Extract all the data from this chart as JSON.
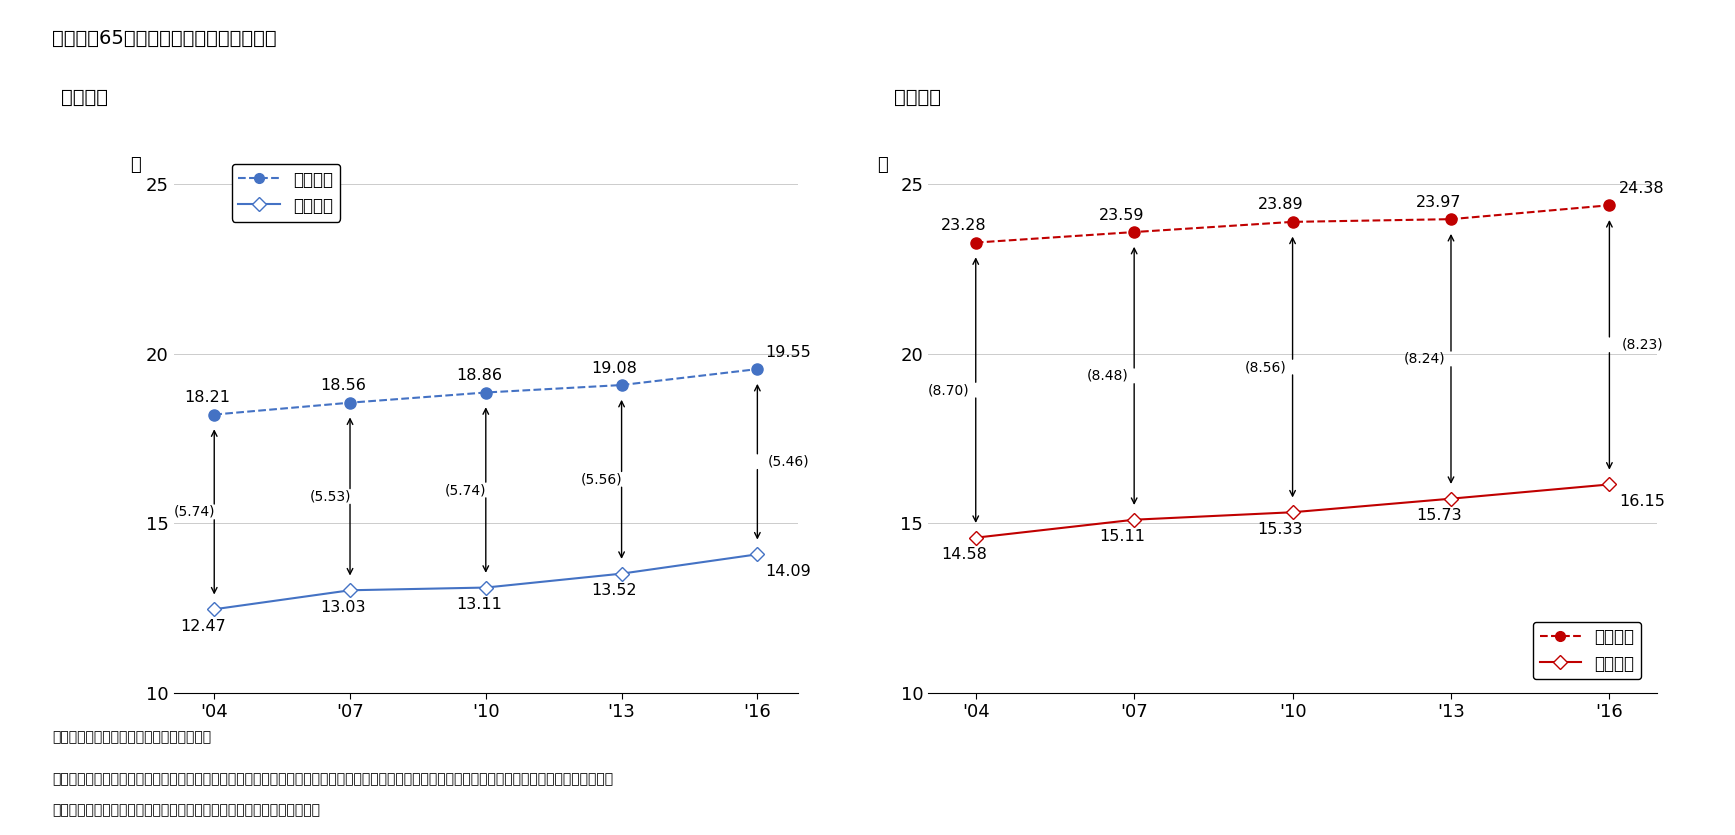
{
  "title": "図表２　65歳時点の平均余命と健康余命",
  "male_label": "【男性】",
  "female_label": "【女性】",
  "years": [
    "'04",
    "'07",
    "'10",
    "'13",
    "'16"
  ],
  "male_avg": [
    18.21,
    18.56,
    18.86,
    19.08,
    19.55
  ],
  "male_health": [
    12.47,
    13.03,
    13.11,
    13.52,
    14.09
  ],
  "male_diff": [
    "(5.74)",
    "(5.53)",
    "(5.74)",
    "(5.56)",
    "(5.46)"
  ],
  "female_avg": [
    23.28,
    23.59,
    23.89,
    23.97,
    24.38
  ],
  "female_health": [
    14.58,
    15.11,
    15.33,
    15.73,
    16.15
  ],
  "female_diff": [
    "(8.70)",
    "(8.48)",
    "(8.56)",
    "(8.24)",
    "(8.23)"
  ],
  "ylim": [
    10,
    26
  ],
  "yticks": [
    10,
    15,
    20,
    25
  ],
  "male_avg_color": "#4472C4",
  "male_health_color": "#4472C4",
  "female_avg_color": "#C00000",
  "female_health_color": "#C00000",
  "legend_avg_label": "平均余命",
  "legend_health_label": "健康余命",
  "note1": "（注）（）は、平均余命と健康余命の差。",
  "note2": "（資料）厚生労働省「簡易生命表」「完全生命表」「国民生活基礎調査」の結果を使って厚生労働科学研究「健康寿命における将来予測と生活習慣病",
  "note3": "　　　　対策の費用対効果に関する研究」による計算シートで筆者試算",
  "yaxis_label": "年",
  "bg_color": "#FFFFFF"
}
